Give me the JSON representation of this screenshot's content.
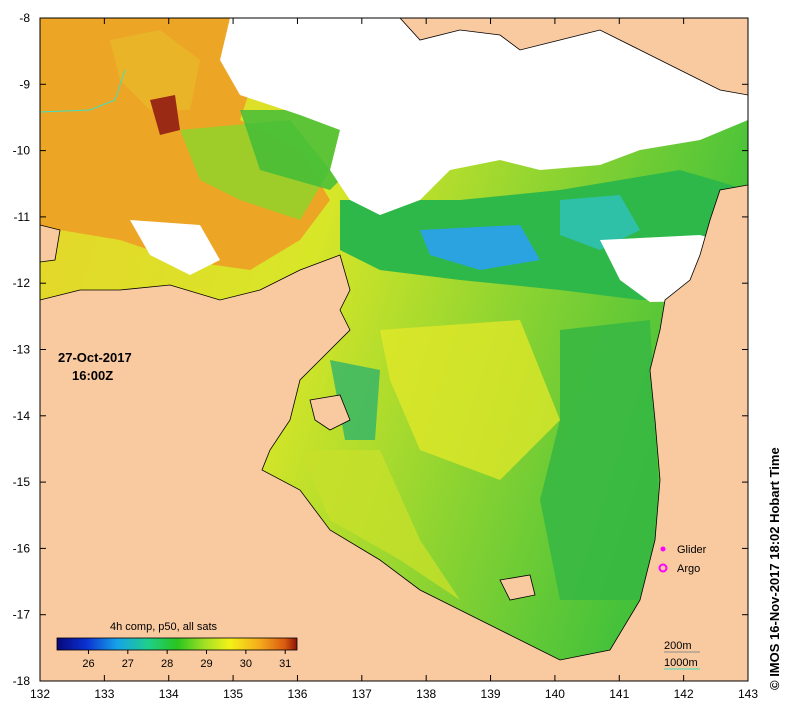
{
  "map": {
    "x_ticks": [
      "132",
      "133",
      "134",
      "135",
      "136",
      "137",
      "138",
      "139",
      "140",
      "141",
      "142",
      "143"
    ],
    "y_ticks": [
      "-8",
      "-9",
      "-10",
      "-11",
      "-12",
      "-13",
      "-14",
      "-15",
      "-16",
      "-17",
      "-18"
    ],
    "date": "27-Oct-2017",
    "time": "16:00Z",
    "credit": "© IMOS 16-Nov-2017 18:02 Hobart Time",
    "legend": {
      "glider": "Glider",
      "argo": "Argo"
    },
    "colorbar": {
      "title": "4h comp, p50, all sats",
      "ticks": [
        "26",
        "27",
        "28",
        "29",
        "30",
        "31"
      ],
      "range": [
        25.2,
        31.3
      ]
    },
    "contours": [
      "200m",
      "1000m"
    ],
    "colors": {
      "land": "#f9c9a0",
      "cloud": "#ffffff",
      "marker": "#ff00ff",
      "contour_200": "#8a8a8a",
      "contour_1000": "#40e0c0"
    }
  }
}
